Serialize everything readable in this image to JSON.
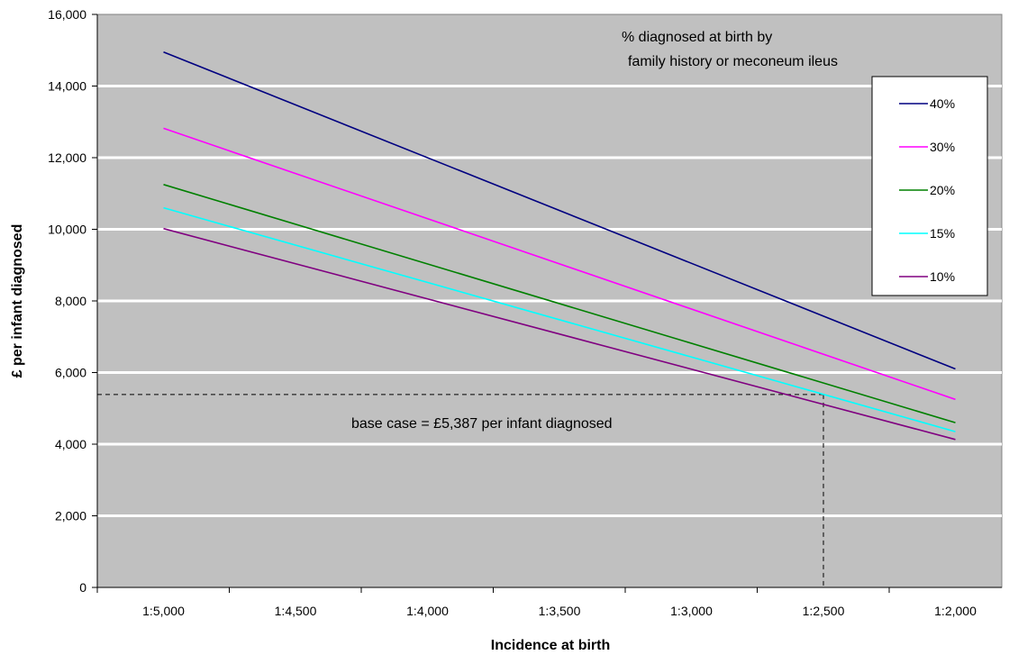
{
  "chart_data": {
    "type": "line",
    "xlabel": "Incidence at birth",
    "ylabel": "£ per infant diagnosed",
    "categories": [
      "1:5,000",
      "1:4,500",
      "1:4,000",
      "1:3,500",
      "1:3,000",
      "1:2,500",
      "1:2,000"
    ],
    "x": [
      5000,
      2000
    ],
    "ylim": [
      0,
      16000
    ],
    "yticks": [
      0,
      2000,
      4000,
      6000,
      8000,
      10000,
      12000,
      14000,
      16000
    ],
    "ytick_labels": [
      "0",
      "2,000",
      "4,000",
      "6,000",
      "8,000",
      "10,000",
      "12,000",
      "14,000",
      "16,000"
    ],
    "grid": true,
    "legend_title": "% diagnosed at birth by family history or meconeum ileus",
    "legend_title_lines": [
      "% diagnosed at birth by",
      "family history or meconeum ileus"
    ],
    "legend_position": "top-right",
    "series": [
      {
        "name": "40%",
        "color": "#000080",
        "values": [
          14950,
          6100
        ]
      },
      {
        "name": "30%",
        "color": "#ff00ff",
        "values": [
          12820,
          5250
        ]
      },
      {
        "name": "20%",
        "color": "#008000",
        "values": [
          11250,
          4600
        ]
      },
      {
        "name": "15%",
        "color": "#00ffff",
        "values": [
          10600,
          4350
        ]
      },
      {
        "name": "10%",
        "color": "#800080",
        "values": [
          10020,
          4130
        ]
      }
    ],
    "annotations": [
      {
        "text": "base case  =  £5,387 per infant diagnosed",
        "x": 2500,
        "y": 5387
      }
    ],
    "colors": {
      "plot_background": "#c0c0c0",
      "gridline": "#ffffff"
    }
  }
}
